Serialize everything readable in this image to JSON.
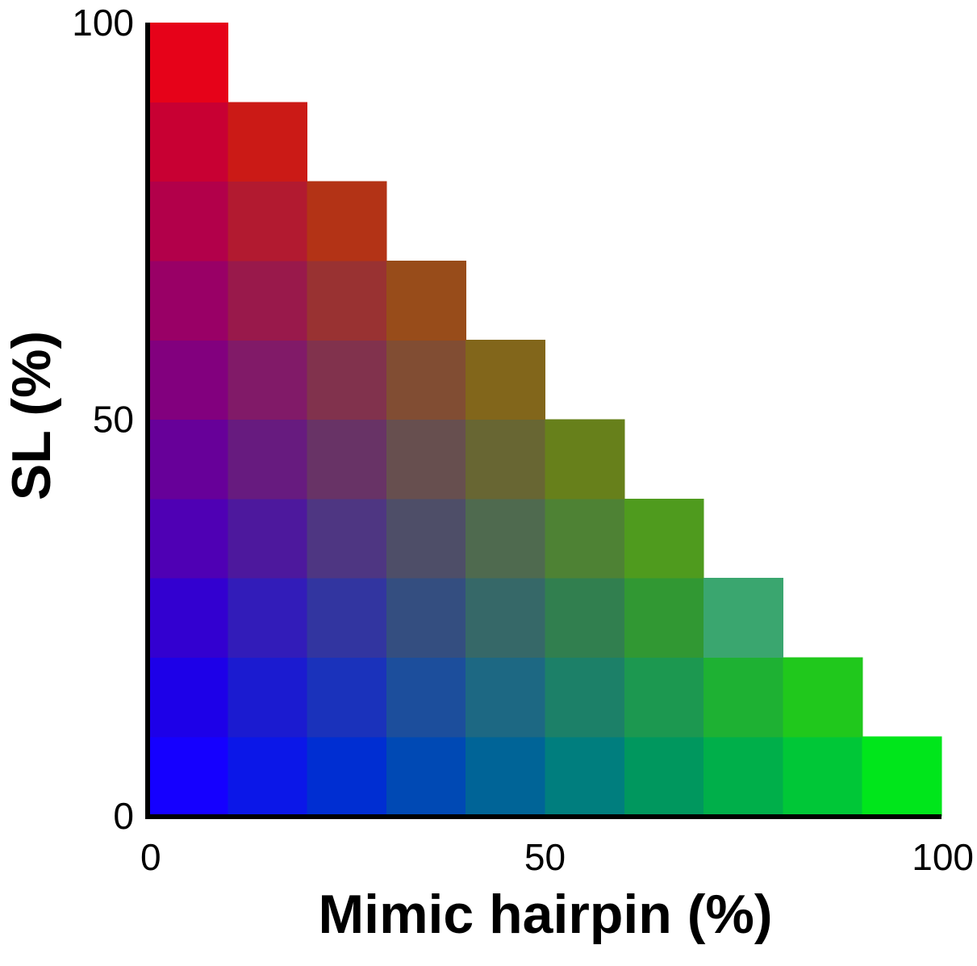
{
  "chart_data": {
    "type": "heatmap",
    "title": "",
    "xlabel": "Mimic hairpin (%)",
    "ylabel": "SL (%)",
    "xlim": [
      0,
      100
    ],
    "ylim": [
      0,
      100
    ],
    "x_ticks": [
      {
        "value": 0,
        "label": "0"
      },
      {
        "value": 50,
        "label": "50"
      },
      {
        "value": 100,
        "label": "100"
      }
    ],
    "y_ticks": [
      {
        "value": 0,
        "label": "0"
      },
      {
        "value": 50,
        "label": "50"
      },
      {
        "value": 100,
        "label": "100"
      }
    ],
    "cell_size": 10,
    "grid": false,
    "color_key": {
      "red": "SL (%)",
      "green": "Mimic hairpin (%)",
      "blue": "remaining (%)"
    },
    "rows": [
      {
        "y": 0,
        "colors": [
          "#1500ff",
          "#0b17e8",
          "#002ed2",
          "#0049b4",
          "#006497",
          "#007e7e",
          "#00975e",
          "#00af4a",
          "#00c737",
          "#00e61b"
        ]
      },
      {
        "y": 10,
        "colors": [
          "#1d00e8",
          "#1b1bd0",
          "#1a32bb",
          "#1c4e9c",
          "#1d6883",
          "#1c8068",
          "#1c9850",
          "#1eb133",
          "#20c81c"
        ]
      },
      {
        "y": 20,
        "colors": [
          "#3300d0",
          "#321cb9",
          "#3235a0",
          "#344e80",
          "#366868",
          "#317f4f",
          "#319833",
          "#3aa66f"
        ]
      },
      {
        "y": 30,
        "colors": [
          "#4f00b4",
          "#4d189d",
          "#4e3682",
          "#4e4e68",
          "#4f6a4f",
          "#4e8234",
          "#4f9b1e"
        ]
      },
      {
        "y": 40,
        "colors": [
          "#670099",
          "#671b7f",
          "#683366",
          "#674f4f",
          "#686633",
          "#67801b"
        ]
      },
      {
        "y": 50,
        "colors": [
          "#82007e",
          "#811a68",
          "#81324d",
          "#814d33",
          "#82661b"
        ]
      },
      {
        "y": 60,
        "colors": [
          "#990066",
          "#99194b",
          "#993232",
          "#984c1a"
        ]
      },
      {
        "y": 70,
        "colors": [
          "#b2004a",
          "#b21a30",
          "#b33316"
        ]
      },
      {
        "y": 80,
        "colors": [
          "#c80033",
          "#cb1a16"
        ]
      },
      {
        "y": 90,
        "colors": [
          "#e60219"
        ]
      }
    ]
  }
}
